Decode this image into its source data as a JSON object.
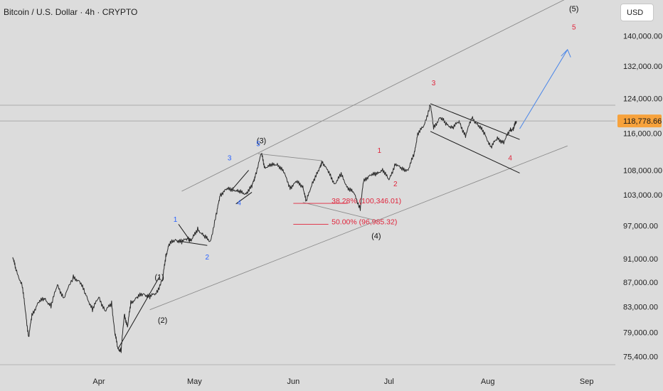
{
  "header": {
    "title": "Bitcoin / U.S. Dollar · 4h · CRYPTO",
    "currency": "USD"
  },
  "colors": {
    "background": "#dcdcdc",
    "price_line": "#2a2a2a",
    "wave_blue": "#2962ff",
    "wave_red": "#e0243b",
    "wave_black": "#111111",
    "channel": "#8a8a8a",
    "projection": "#4a86e8",
    "last_price_bg": "#f7a23c"
  },
  "chart_data": {
    "type": "line",
    "title": "Bitcoin / U.S. Dollar · 4h · CRYPTO",
    "y_ticks": [
      {
        "value": 140000,
        "label": "140,000.00"
      },
      {
        "value": 132000,
        "label": "132,000.00"
      },
      {
        "value": 124000,
        "label": "124,000.00"
      },
      {
        "value": 116000,
        "label": "116,000.00"
      },
      {
        "value": 108000,
        "label": "108,000.00"
      },
      {
        "value": 103000,
        "label": "103,000.00"
      },
      {
        "value": 97000,
        "label": "97,000.00"
      },
      {
        "value": 91000,
        "label": "91,000.00"
      },
      {
        "value": 87000,
        "label": "87,000.00"
      },
      {
        "value": 83000,
        "label": "83,000.00"
      },
      {
        "value": 79000,
        "label": "79,000.00"
      },
      {
        "value": 75400,
        "label": "75,400.00"
      }
    ],
    "x_ticks": [
      {
        "date": "2025-04-01",
        "label": "Apr"
      },
      {
        "date": "2025-05-01",
        "label": "May"
      },
      {
        "date": "2025-06-01",
        "label": "Jun"
      },
      {
        "date": "2025-07-01",
        "label": "Jul"
      },
      {
        "date": "2025-08-01",
        "label": "Aug"
      },
      {
        "date": "2025-09-01",
        "label": "Sep"
      }
    ],
    "series": [
      {
        "values": [
          [
            "2025-03-05",
            91500
          ],
          [
            "2025-03-06",
            89000
          ],
          [
            "2025-03-08",
            86500
          ],
          [
            "2025-03-09",
            82000
          ],
          [
            "2025-03-10",
            78300
          ],
          [
            "2025-03-11",
            81500
          ],
          [
            "2025-03-13",
            83800
          ],
          [
            "2025-03-15",
            84200
          ],
          [
            "2025-03-17",
            83200
          ],
          [
            "2025-03-19",
            86500
          ],
          [
            "2025-03-21",
            84400
          ],
          [
            "2025-03-24",
            87800
          ],
          [
            "2025-03-26",
            87200
          ],
          [
            "2025-03-28",
            84800
          ],
          [
            "2025-03-30",
            82600
          ],
          [
            "2025-04-01",
            84500
          ],
          [
            "2025-04-03",
            82300
          ],
          [
            "2025-04-05",
            83500
          ],
          [
            "2025-04-06",
            79000
          ],
          [
            "2025-04-07",
            76500
          ],
          [
            "2025-04-08",
            76300
          ],
          [
            "2025-04-09",
            81800
          ],
          [
            "2025-04-10",
            79800
          ],
          [
            "2025-04-11",
            83600
          ],
          [
            "2025-04-13",
            84500
          ],
          [
            "2025-04-15",
            85100
          ],
          [
            "2025-04-17",
            84600
          ],
          [
            "2025-04-19",
            85200
          ],
          [
            "2025-04-21",
            87500
          ],
          [
            "2025-04-22",
            91500
          ],
          [
            "2025-04-23",
            93500
          ],
          [
            "2025-04-25",
            94500
          ],
          [
            "2025-04-27",
            94000
          ],
          [
            "2025-04-29",
            94800
          ],
          [
            "2025-04-30",
            94200
          ],
          [
            "2025-05-02",
            96500
          ],
          [
            "2025-05-04",
            95000
          ],
          [
            "2025-05-06",
            94200
          ],
          [
            "2025-05-08",
            99500
          ],
          [
            "2025-05-09",
            103000
          ],
          [
            "2025-05-11",
            104000
          ],
          [
            "2025-05-13",
            104200
          ],
          [
            "2025-05-15",
            103500
          ],
          [
            "2025-05-17",
            103300
          ],
          [
            "2025-05-19",
            104600
          ],
          [
            "2025-05-20",
            106800
          ],
          [
            "2025-05-22",
            111500
          ],
          [
            "2025-05-23",
            108700
          ],
          [
            "2025-05-25",
            108900
          ],
          [
            "2025-05-27",
            109400
          ],
          [
            "2025-05-29",
            107500
          ],
          [
            "2025-05-31",
            104500
          ],
          [
            "2025-06-02",
            105500
          ],
          [
            "2025-06-04",
            104800
          ],
          [
            "2025-06-05",
            101500
          ],
          [
            "2025-06-07",
            105600
          ],
          [
            "2025-06-09",
            107800
          ],
          [
            "2025-06-10",
            110000
          ],
          [
            "2025-06-12",
            107500
          ],
          [
            "2025-06-14",
            105300
          ],
          [
            "2025-06-16",
            107000
          ],
          [
            "2025-06-18",
            104600
          ],
          [
            "2025-06-20",
            103200
          ],
          [
            "2025-06-22",
            100400
          ],
          [
            "2025-06-23",
            105500
          ],
          [
            "2025-06-25",
            107200
          ],
          [
            "2025-06-27",
            107000
          ],
          [
            "2025-06-29",
            108300
          ],
          [
            "2025-07-01",
            105800
          ],
          [
            "2025-07-03",
            109500
          ],
          [
            "2025-07-05",
            108100
          ],
          [
            "2025-07-07",
            108200
          ],
          [
            "2025-07-09",
            111500
          ],
          [
            "2025-07-10",
            116000
          ],
          [
            "2025-07-12",
            117500
          ],
          [
            "2025-07-14",
            122800
          ],
          [
            "2025-07-15",
            117000
          ],
          [
            "2025-07-17",
            119800
          ],
          [
            "2025-07-19",
            117900
          ],
          [
            "2025-07-21",
            117400
          ],
          [
            "2025-07-23",
            118500
          ],
          [
            "2025-07-25",
            115500
          ],
          [
            "2025-07-27",
            119400
          ],
          [
            "2025-07-29",
            117900
          ],
          [
            "2025-07-31",
            115800
          ],
          [
            "2025-08-02",
            113000
          ],
          [
            "2025-08-04",
            114800
          ],
          [
            "2025-08-06",
            114000
          ],
          [
            "2025-08-08",
            116700
          ],
          [
            "2025-08-09",
            117000
          ],
          [
            "2025-08-10",
            118779
          ]
        ]
      }
    ],
    "last_price": {
      "value": 118778.66,
      "label": "118,778.66"
    },
    "y_scale": "log",
    "ylim": [
      74200,
      150000
    ],
    "xlim": [
      "2025-03-01",
      "2025-09-10"
    ],
    "grid": "off",
    "annotations": {
      "wave_labels": [
        {
          "text": "(1)",
          "date": "2025-04-20",
          "price": 87900,
          "color": "black"
        },
        {
          "text": "(2)",
          "date": "2025-04-21",
          "price": 80900,
          "color": "black"
        },
        {
          "text": "(3)",
          "date": "2025-05-22",
          "price": 114400,
          "color": "black"
        },
        {
          "text": "(4)",
          "date": "2025-06-27",
          "price": 95200,
          "color": "black"
        },
        {
          "text": "(5)",
          "date": "2025-08-28",
          "price": 147500,
          "color": "black"
        },
        {
          "text": "1",
          "date": "2025-04-25",
          "price": 98300,
          "color": "blue"
        },
        {
          "text": "2",
          "date": "2025-05-05",
          "price": 91400,
          "color": "blue"
        },
        {
          "text": "3",
          "date": "2025-05-12",
          "price": 110700,
          "color": "blue"
        },
        {
          "text": "4",
          "date": "2025-05-15",
          "price": 101500,
          "color": "blue"
        },
        {
          "text": "5",
          "date": "2025-05-21",
          "price": 113800,
          "color": "blue"
        },
        {
          "text": "1",
          "date": "2025-06-28",
          "price": 112300,
          "color": "red"
        },
        {
          "text": "2",
          "date": "2025-07-03",
          "price": 105300,
          "color": "red"
        },
        {
          "text": "3",
          "date": "2025-07-15",
          "price": 127900,
          "color": "red"
        },
        {
          "text": "4",
          "date": "2025-08-08",
          "price": 110700,
          "color": "red"
        },
        {
          "text": "5",
          "date": "2025-08-28",
          "price": 142500,
          "color": "red"
        }
      ],
      "fib_levels": [
        {
          "text": "38.28% (100,346.01)",
          "date": "2025-06-13",
          "price": 101300
        },
        {
          "text": "50.00% (96,985.32)",
          "date": "2025-06-13",
          "price": 97300
        }
      ]
    }
  }
}
